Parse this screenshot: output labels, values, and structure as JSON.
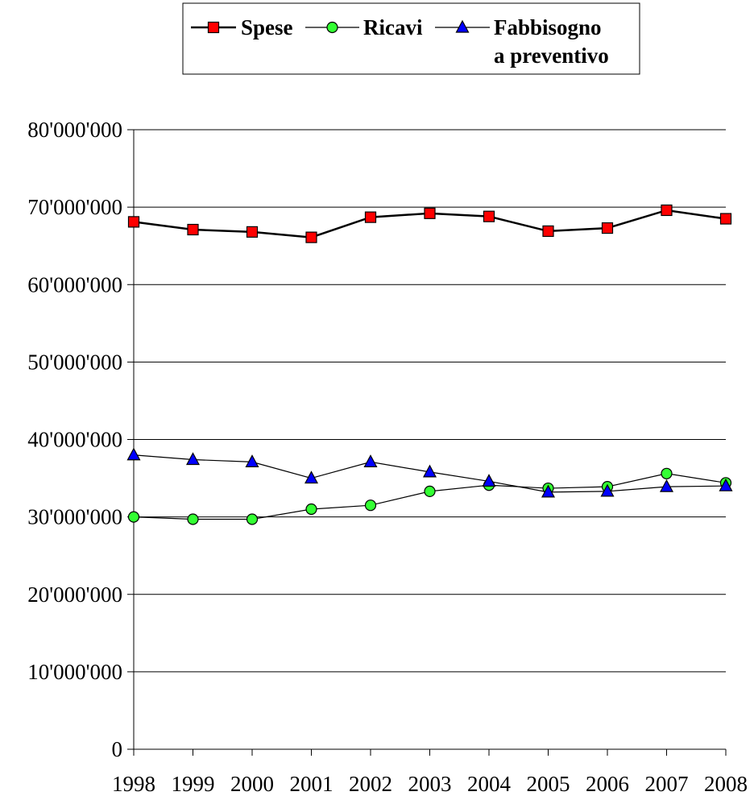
{
  "chart_data": {
    "type": "line",
    "title": "",
    "xlabel": "",
    "ylabel": "",
    "x": [
      "1998",
      "1999",
      "2000",
      "2001",
      "2002",
      "2003",
      "2004",
      "2005",
      "2006",
      "2007",
      "2008"
    ],
    "ylim": [
      0,
      80000000
    ],
    "yticks": [
      0,
      10000000,
      20000000,
      30000000,
      40000000,
      50000000,
      60000000,
      70000000,
      80000000
    ],
    "ytick_labels": [
      "0",
      "10'000'000",
      "20'000'000",
      "30'000'000",
      "40'000'000",
      "50'000'000",
      "60'000'000",
      "70'000'000",
      "80'000'000"
    ],
    "grid": "horizontal",
    "legend_position": "top-center",
    "series": [
      {
        "name": "Spese",
        "marker": "square",
        "color": "#ff0000",
        "line_color": "#000000",
        "values": [
          68100000,
          67100000,
          66800000,
          66100000,
          68700000,
          69200000,
          68800000,
          66900000,
          67300000,
          69600000,
          68500000
        ]
      },
      {
        "name": "Ricavi",
        "marker": "circle",
        "color": "#33ff33",
        "line_color": "#000000",
        "values": [
          30000000,
          29700000,
          29700000,
          31000000,
          31500000,
          33300000,
          34100000,
          33700000,
          33900000,
          35600000,
          34400000
        ]
      },
      {
        "name_lines": [
          "Fabbisogno",
          "a preventivo"
        ],
        "marker": "triangle",
        "color": "#0000ff",
        "line_color": "#000000",
        "values": [
          38000000,
          37400000,
          37100000,
          35000000,
          37100000,
          35800000,
          34600000,
          33200000,
          33300000,
          33900000,
          34000000
        ]
      }
    ]
  }
}
